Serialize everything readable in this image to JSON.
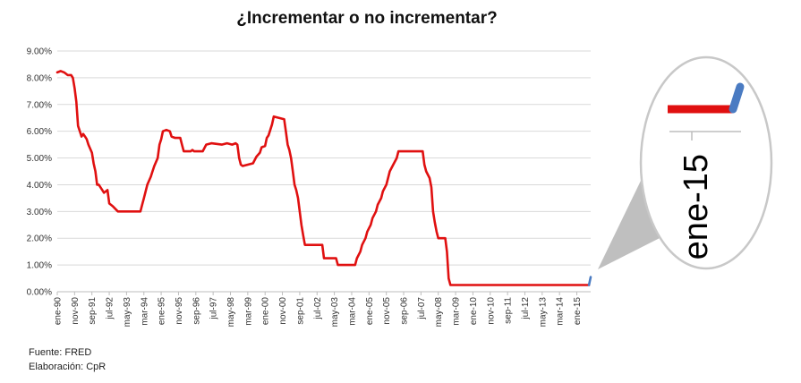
{
  "chart_data": {
    "type": "line",
    "title": "¿Incrementar o no incrementar?",
    "xlabel": "",
    "ylabel": "",
    "ylim": [
      0,
      9
    ],
    "y_tick_labels": [
      "0.00%",
      "1.00%",
      "2.00%",
      "3.00%",
      "4.00%",
      "5.00%",
      "6.00%",
      "7.00%",
      "8.00%",
      "9.00%"
    ],
    "x_tick_labels": [
      "ene-90",
      "nov-90",
      "sep-91",
      "jul-92",
      "may-93",
      "mar-94",
      "ene-95",
      "nov-95",
      "sep-96",
      "jul-97",
      "may-98",
      "mar-99",
      "ene-00",
      "nov-00",
      "sep-01",
      "jul-02",
      "may-03",
      "mar-04",
      "ene-05",
      "nov-05",
      "sep-06",
      "jul-07",
      "may-08",
      "mar-09",
      "ene-10",
      "nov-10",
      "sep-11",
      "jul-12",
      "may-13",
      "mar-14",
      "ene-15"
    ],
    "x_start": "1990-01",
    "x_end": "2015-09",
    "grid": true,
    "legend": "none",
    "series": [
      {
        "color": "#e01010",
        "points": [
          [
            "1990-01",
            8.2
          ],
          [
            "1990-03",
            8.25
          ],
          [
            "1990-05",
            8.2
          ],
          [
            "1990-07",
            8.1
          ],
          [
            "1990-09",
            8.1
          ],
          [
            "1990-10",
            8.0
          ],
          [
            "1990-11",
            7.6
          ],
          [
            "1990-12",
            7.1
          ],
          [
            "1991-01",
            6.2
          ],
          [
            "1991-02",
            6.0
          ],
          [
            "1991-03",
            5.8
          ],
          [
            "1991-04",
            5.9
          ],
          [
            "1991-05",
            5.8
          ],
          [
            "1991-06",
            5.7
          ],
          [
            "1991-07",
            5.5
          ],
          [
            "1991-09",
            5.2
          ],
          [
            "1991-10",
            4.8
          ],
          [
            "1991-11",
            4.5
          ],
          [
            "1991-12",
            4.0
          ],
          [
            "1992-01",
            4.0
          ],
          [
            "1992-03",
            3.8
          ],
          [
            "1992-04",
            3.7
          ],
          [
            "1992-06",
            3.8
          ],
          [
            "1992-07",
            3.3
          ],
          [
            "1992-09",
            3.2
          ],
          [
            "1992-12",
            3.0
          ],
          [
            "1993-02",
            3.0
          ],
          [
            "1993-06",
            3.0
          ],
          [
            "1993-09",
            3.0
          ],
          [
            "1993-12",
            3.0
          ],
          [
            "1994-01",
            3.0
          ],
          [
            "1994-02",
            3.25
          ],
          [
            "1994-03",
            3.5
          ],
          [
            "1994-04",
            3.75
          ],
          [
            "1994-05",
            4.0
          ],
          [
            "1994-07",
            4.3
          ],
          [
            "1994-08",
            4.5
          ],
          [
            "1994-09",
            4.7
          ],
          [
            "1994-11",
            5.0
          ],
          [
            "1994-12",
            5.5
          ],
          [
            "1995-01",
            5.7
          ],
          [
            "1995-02",
            6.0
          ],
          [
            "1995-04",
            6.05
          ],
          [
            "1995-06",
            6.0
          ],
          [
            "1995-07",
            5.8
          ],
          [
            "1995-09",
            5.75
          ],
          [
            "1995-12",
            5.75
          ],
          [
            "1996-01",
            5.5
          ],
          [
            "1996-02",
            5.25
          ],
          [
            "1996-06",
            5.25
          ],
          [
            "1996-07",
            5.3
          ],
          [
            "1996-08",
            5.25
          ],
          [
            "1996-12",
            5.25
          ],
          [
            "1997-01",
            5.25
          ],
          [
            "1997-03",
            5.5
          ],
          [
            "1997-06",
            5.55
          ],
          [
            "1997-12",
            5.5
          ],
          [
            "1998-03",
            5.55
          ],
          [
            "1998-06",
            5.5
          ],
          [
            "1998-08",
            5.55
          ],
          [
            "1998-09",
            5.5
          ],
          [
            "1998-10",
            5.0
          ],
          [
            "1998-11",
            4.75
          ],
          [
            "1998-12",
            4.7
          ],
          [
            "1999-03",
            4.75
          ],
          [
            "1999-06",
            4.8
          ],
          [
            "1999-08",
            5.05
          ],
          [
            "1999-10",
            5.2
          ],
          [
            "1999-11",
            5.4
          ],
          [
            "2000-01",
            5.45
          ],
          [
            "2000-02",
            5.75
          ],
          [
            "2000-03",
            5.85
          ],
          [
            "2000-05",
            6.25
          ],
          [
            "2000-06",
            6.55
          ],
          [
            "2000-09",
            6.5
          ],
          [
            "2000-12",
            6.45
          ],
          [
            "2001-01",
            6.0
          ],
          [
            "2001-02",
            5.5
          ],
          [
            "2001-03",
            5.3
          ],
          [
            "2001-04",
            5.0
          ],
          [
            "2001-05",
            4.5
          ],
          [
            "2001-06",
            4.0
          ],
          [
            "2001-07",
            3.8
          ],
          [
            "2001-08",
            3.5
          ],
          [
            "2001-09",
            3.0
          ],
          [
            "2001-10",
            2.5
          ],
          [
            "2001-11",
            2.1
          ],
          [
            "2001-12",
            1.75
          ],
          [
            "2002-03",
            1.75
          ],
          [
            "2002-06",
            1.75
          ],
          [
            "2002-10",
            1.75
          ],
          [
            "2002-11",
            1.25
          ],
          [
            "2003-03",
            1.25
          ],
          [
            "2003-06",
            1.25
          ],
          [
            "2003-07",
            1.0
          ],
          [
            "2003-12",
            1.0
          ],
          [
            "2004-03",
            1.0
          ],
          [
            "2004-05",
            1.0
          ],
          [
            "2004-06",
            1.25
          ],
          [
            "2004-08",
            1.5
          ],
          [
            "2004-09",
            1.75
          ],
          [
            "2004-11",
            2.0
          ],
          [
            "2004-12",
            2.25
          ],
          [
            "2005-02",
            2.5
          ],
          [
            "2005-03",
            2.75
          ],
          [
            "2005-05",
            3.0
          ],
          [
            "2005-06",
            3.25
          ],
          [
            "2005-08",
            3.5
          ],
          [
            "2005-09",
            3.75
          ],
          [
            "2005-11",
            4.0
          ],
          [
            "2005-12",
            4.25
          ],
          [
            "2006-01",
            4.5
          ],
          [
            "2006-03",
            4.75
          ],
          [
            "2006-05",
            5.0
          ],
          [
            "2006-06",
            5.25
          ],
          [
            "2006-12",
            5.25
          ],
          [
            "2007-03",
            5.25
          ],
          [
            "2007-08",
            5.25
          ],
          [
            "2007-09",
            4.75
          ],
          [
            "2007-10",
            4.5
          ],
          [
            "2007-12",
            4.25
          ],
          [
            "2008-01",
            3.9
          ],
          [
            "2008-02",
            3.0
          ],
          [
            "2008-03",
            2.6
          ],
          [
            "2008-04",
            2.25
          ],
          [
            "2008-05",
            2.0
          ],
          [
            "2008-09",
            2.0
          ],
          [
            "2008-10",
            1.5
          ],
          [
            "2008-11",
            0.5
          ],
          [
            "2008-12",
            0.25
          ],
          [
            "2009-06",
            0.25
          ],
          [
            "2010-06",
            0.25
          ],
          [
            "2011-06",
            0.25
          ],
          [
            "2012-06",
            0.25
          ],
          [
            "2013-06",
            0.25
          ],
          [
            "2014-06",
            0.25
          ],
          [
            "2015-07",
            0.25
          ],
          [
            "2015-08",
            0.25
          ]
        ]
      },
      {
        "color": "#4a7bc2",
        "points": [
          [
            "2015-08",
            0.25
          ],
          [
            "2015-09",
            0.55
          ]
        ]
      }
    ]
  },
  "zoom": {
    "label": "ene-15"
  },
  "footer": {
    "source": "Fuente:  FRED",
    "author": "Elaboración: CpR"
  }
}
